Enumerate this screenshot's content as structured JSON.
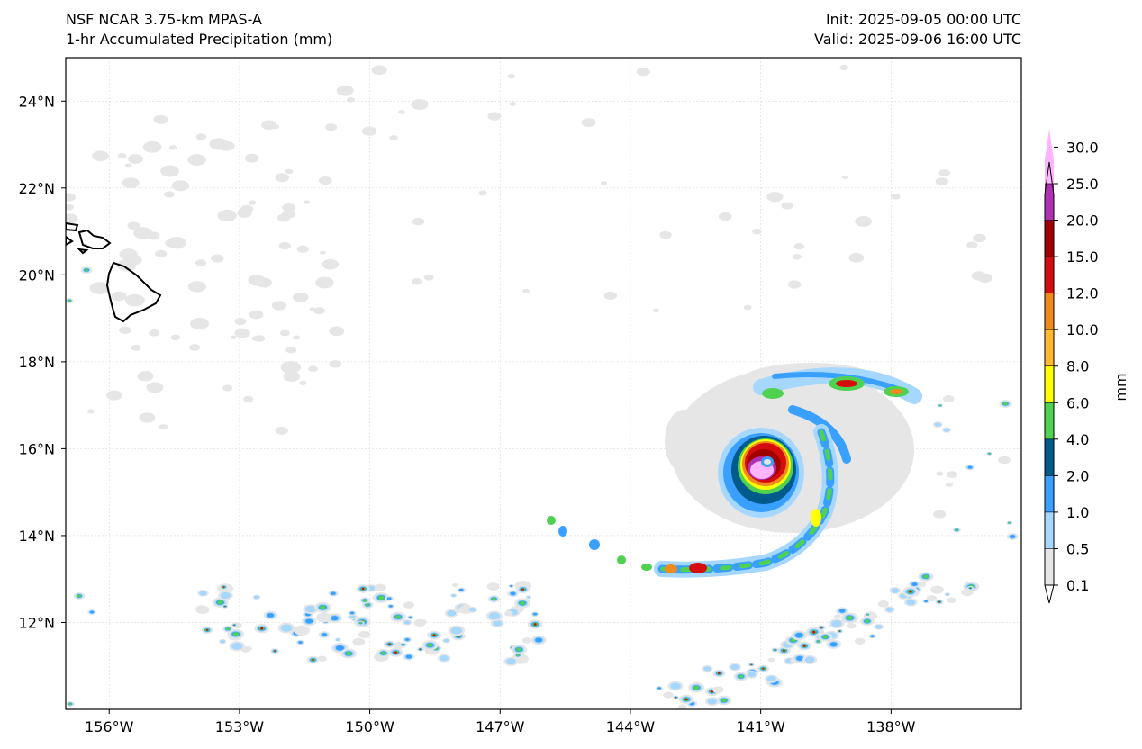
{
  "header": {
    "model": "NSF NCAR 3.75-km MPAS-A",
    "field": "1-hr Accumulated Precipitation (mm)",
    "init": "Init: 2025-09-05 00:00 UTC",
    "valid": "Valid: 2025-09-06 16:00 UTC"
  },
  "map": {
    "lon_range": [
      -157.0,
      -135.0
    ],
    "lat_range": [
      10.0,
      25.0
    ],
    "gridlines": true,
    "lon_ticks": [
      {
        "value": -156,
        "label": "156°W"
      },
      {
        "value": -153,
        "label": "153°W"
      },
      {
        "value": -150,
        "label": "150°W"
      },
      {
        "value": -147,
        "label": "147°W"
      },
      {
        "value": -144,
        "label": "144°W"
      },
      {
        "value": -141,
        "label": "141°W"
      },
      {
        "value": -138,
        "label": "138°W"
      }
    ],
    "lat_ticks": [
      {
        "value": 24,
        "label": "24°N"
      },
      {
        "value": 22,
        "label": "22°N"
      },
      {
        "value": 20,
        "label": "20°N"
      },
      {
        "value": 18,
        "label": "18°N"
      },
      {
        "value": 16,
        "label": "16°N"
      },
      {
        "value": 14,
        "label": "14°N"
      },
      {
        "value": 12,
        "label": "12°N"
      }
    ]
  },
  "colorbar": {
    "unit": "mm",
    "levels": [
      {
        "label": "0.1",
        "color": "#e6e6e6"
      },
      {
        "label": "0.5",
        "color": "#a6d8ff"
      },
      {
        "label": "1.0",
        "color": "#3aa0ff"
      },
      {
        "label": "2.0",
        "color": "#005a8c"
      },
      {
        "label": "4.0",
        "color": "#4fd24f"
      },
      {
        "label": "6.0",
        "color": "#ffff00"
      },
      {
        "label": "8.0",
        "color": "#ffb830"
      },
      {
        "label": "10.0",
        "color": "#f08a1e"
      },
      {
        "label": "12.0",
        "color": "#d60d0d"
      },
      {
        "label": "15.0",
        "color": "#a00000"
      },
      {
        "label": "20.0",
        "color": "#b032b4"
      },
      {
        "label": "25.0",
        "color": "#ffb4ff"
      },
      {
        "label": "30.0",
        "color": null
      }
    ]
  }
}
